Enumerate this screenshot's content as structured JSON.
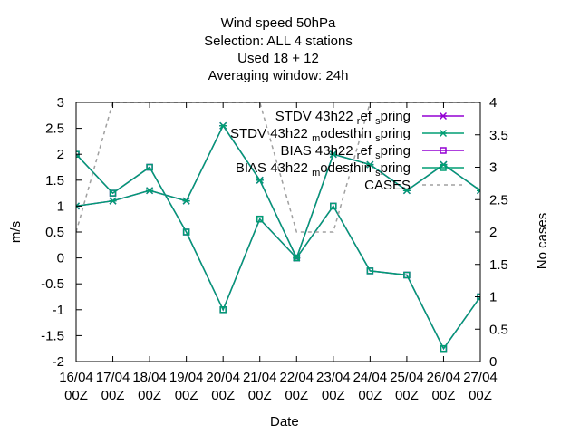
{
  "titles": [
    "Wind speed 50hPa",
    "Selection: ALL       4 stations",
    "Used  18  + 12",
    "Averaging window: 24h"
  ],
  "chart_data": {
    "type": "line",
    "x_ticks": [
      "16/04\n00Z",
      "17/04\n00Z",
      "18/04\n00Z",
      "19/04\n00Z",
      "20/04\n00Z",
      "21/04\n00Z",
      "22/04\n00Z",
      "23/04\n00Z",
      "24/04\n00Z",
      "25/04\n00Z",
      "26/04\n00Z",
      "27/04\n00Z"
    ],
    "xlabel": "Date",
    "ylabel": "m/s",
    "y2label": "No cases",
    "ylim": [
      -2,
      3
    ],
    "y2lim": [
      0,
      4
    ],
    "y_ticks": [
      -2,
      -1.5,
      -1,
      -0.5,
      0,
      0.5,
      1,
      1.5,
      2,
      2.5,
      3
    ],
    "y2_ticks": [
      0,
      0.5,
      1,
      1.5,
      2,
      2.5,
      3,
      3.5,
      4
    ],
    "grid": false,
    "legend_position": "top-right",
    "series": [
      {
        "name": "STDV 43h22_ref_spring",
        "legend_main": "STDV 43h22",
        "legend_sub": "r",
        "legend_mid": "ef",
        "legend_sub2": "s",
        "legend_end": "pring",
        "axis": "y1",
        "color": "#9400d3",
        "marker": "x",
        "dash": false,
        "values": [
          1.0,
          1.1,
          1.3,
          1.1,
          2.55,
          1.5,
          0.0,
          2.0,
          1.8,
          1.3,
          1.8,
          1.3
        ]
      },
      {
        "name": "STDV 43h22_modesthin_spring",
        "legend_main": "STDV 43h22",
        "legend_sub": "m",
        "legend_mid": "odesthin",
        "legend_sub2": "s",
        "legend_end": "pring",
        "axis": "y1",
        "color": "#009e73",
        "marker": "x",
        "dash": false,
        "values": [
          1.0,
          1.1,
          1.3,
          1.1,
          2.55,
          1.5,
          0.0,
          2.0,
          1.8,
          1.3,
          1.8,
          1.3
        ]
      },
      {
        "name": "BIAS 43h22_ref_spring",
        "legend_main": "BIAS 43h22",
        "legend_sub": "r",
        "legend_mid": "ef",
        "legend_sub2": "s",
        "legend_end": "pring",
        "axis": "y1",
        "color": "#9400d3",
        "marker": "square",
        "dash": false,
        "values": [
          2.0,
          1.25,
          1.75,
          0.5,
          -1.0,
          0.75,
          0.0,
          1.0,
          -0.25,
          -0.33,
          -1.75,
          -0.75
        ]
      },
      {
        "name": "BIAS 43h22_modesthin_spring",
        "legend_main": "BIAS 43h22",
        "legend_sub": "m",
        "legend_mid": "odesthin",
        "legend_sub2": "s",
        "legend_end": "pring",
        "axis": "y1",
        "color": "#009e73",
        "marker": "square",
        "dash": false,
        "values": [
          2.0,
          1.25,
          1.75,
          0.5,
          -1.0,
          0.75,
          0.0,
          1.0,
          -0.25,
          -0.33,
          -1.75,
          -0.75
        ]
      },
      {
        "name": "CASES",
        "legend_main": "CASES",
        "axis": "y2",
        "color": "#a0a0a0",
        "marker": "none",
        "dash": true,
        "values": [
          2,
          4,
          4,
          4,
          4,
          4,
          2,
          2,
          4,
          4,
          4,
          4
        ]
      }
    ]
  }
}
